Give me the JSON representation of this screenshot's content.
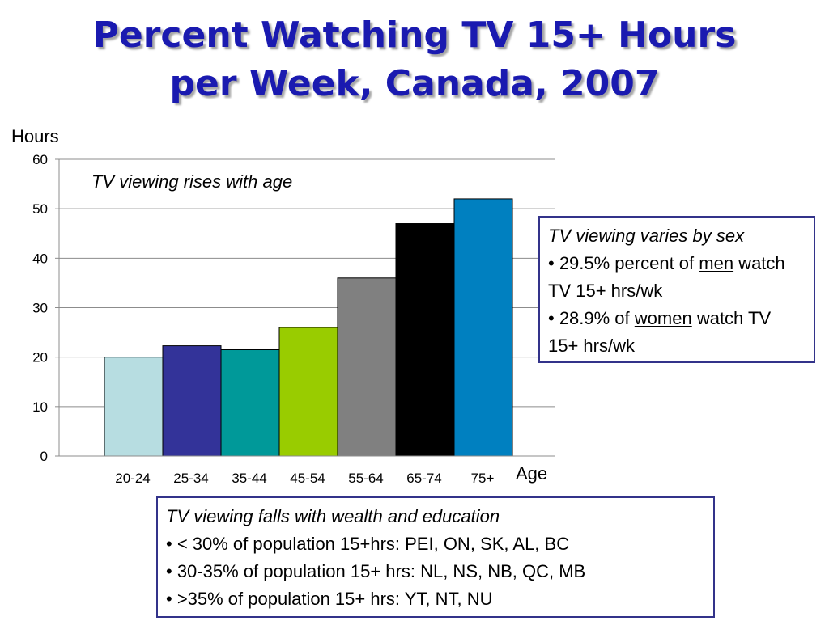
{
  "title": {
    "line1": "Percent Watching TV 15+ Hours",
    "line2": "per Week, Canada, 2007"
  },
  "chart_data": {
    "type": "bar",
    "ylabel": "Hours",
    "xlabel": "Age",
    "ylim": [
      0,
      60
    ],
    "yticks": [
      0,
      10,
      20,
      30,
      40,
      50,
      60
    ],
    "grid": true,
    "categories": [
      "20-24",
      "25-34",
      "35-44",
      "45-54",
      "55-64",
      "65-74",
      "75+"
    ],
    "values": [
      20,
      22.3,
      21.5,
      26,
      36,
      47,
      52
    ],
    "colors": [
      "#b7dde1",
      "#333399",
      "#009999",
      "#99cc00",
      "#808080",
      "#000000",
      "#0080c0"
    ],
    "annotation": "TV viewing rises with age"
  },
  "sex_box": {
    "heading": "TV viewing varies by sex",
    "bullet1_pre": "• 29.5% percent of ",
    "bullet1_u": "men",
    "bullet1_post": " watch TV 15+ hrs/wk",
    "bullet2_pre": "• 28.9% of ",
    "bullet2_u": "women",
    "bullet2_post": " watch TV 15+ hrs/wk"
  },
  "wealth_box": {
    "heading": "TV viewing falls with wealth and education",
    "bullets": [
      "• < 30% of population 15+hrs: PEI, ON, SK, AL, BC",
      "• 30-35% of population 15+ hrs: NL, NS, NB, QC, MB",
      "• >35% of population 15+ hrs: YT, NT, NU"
    ]
  }
}
